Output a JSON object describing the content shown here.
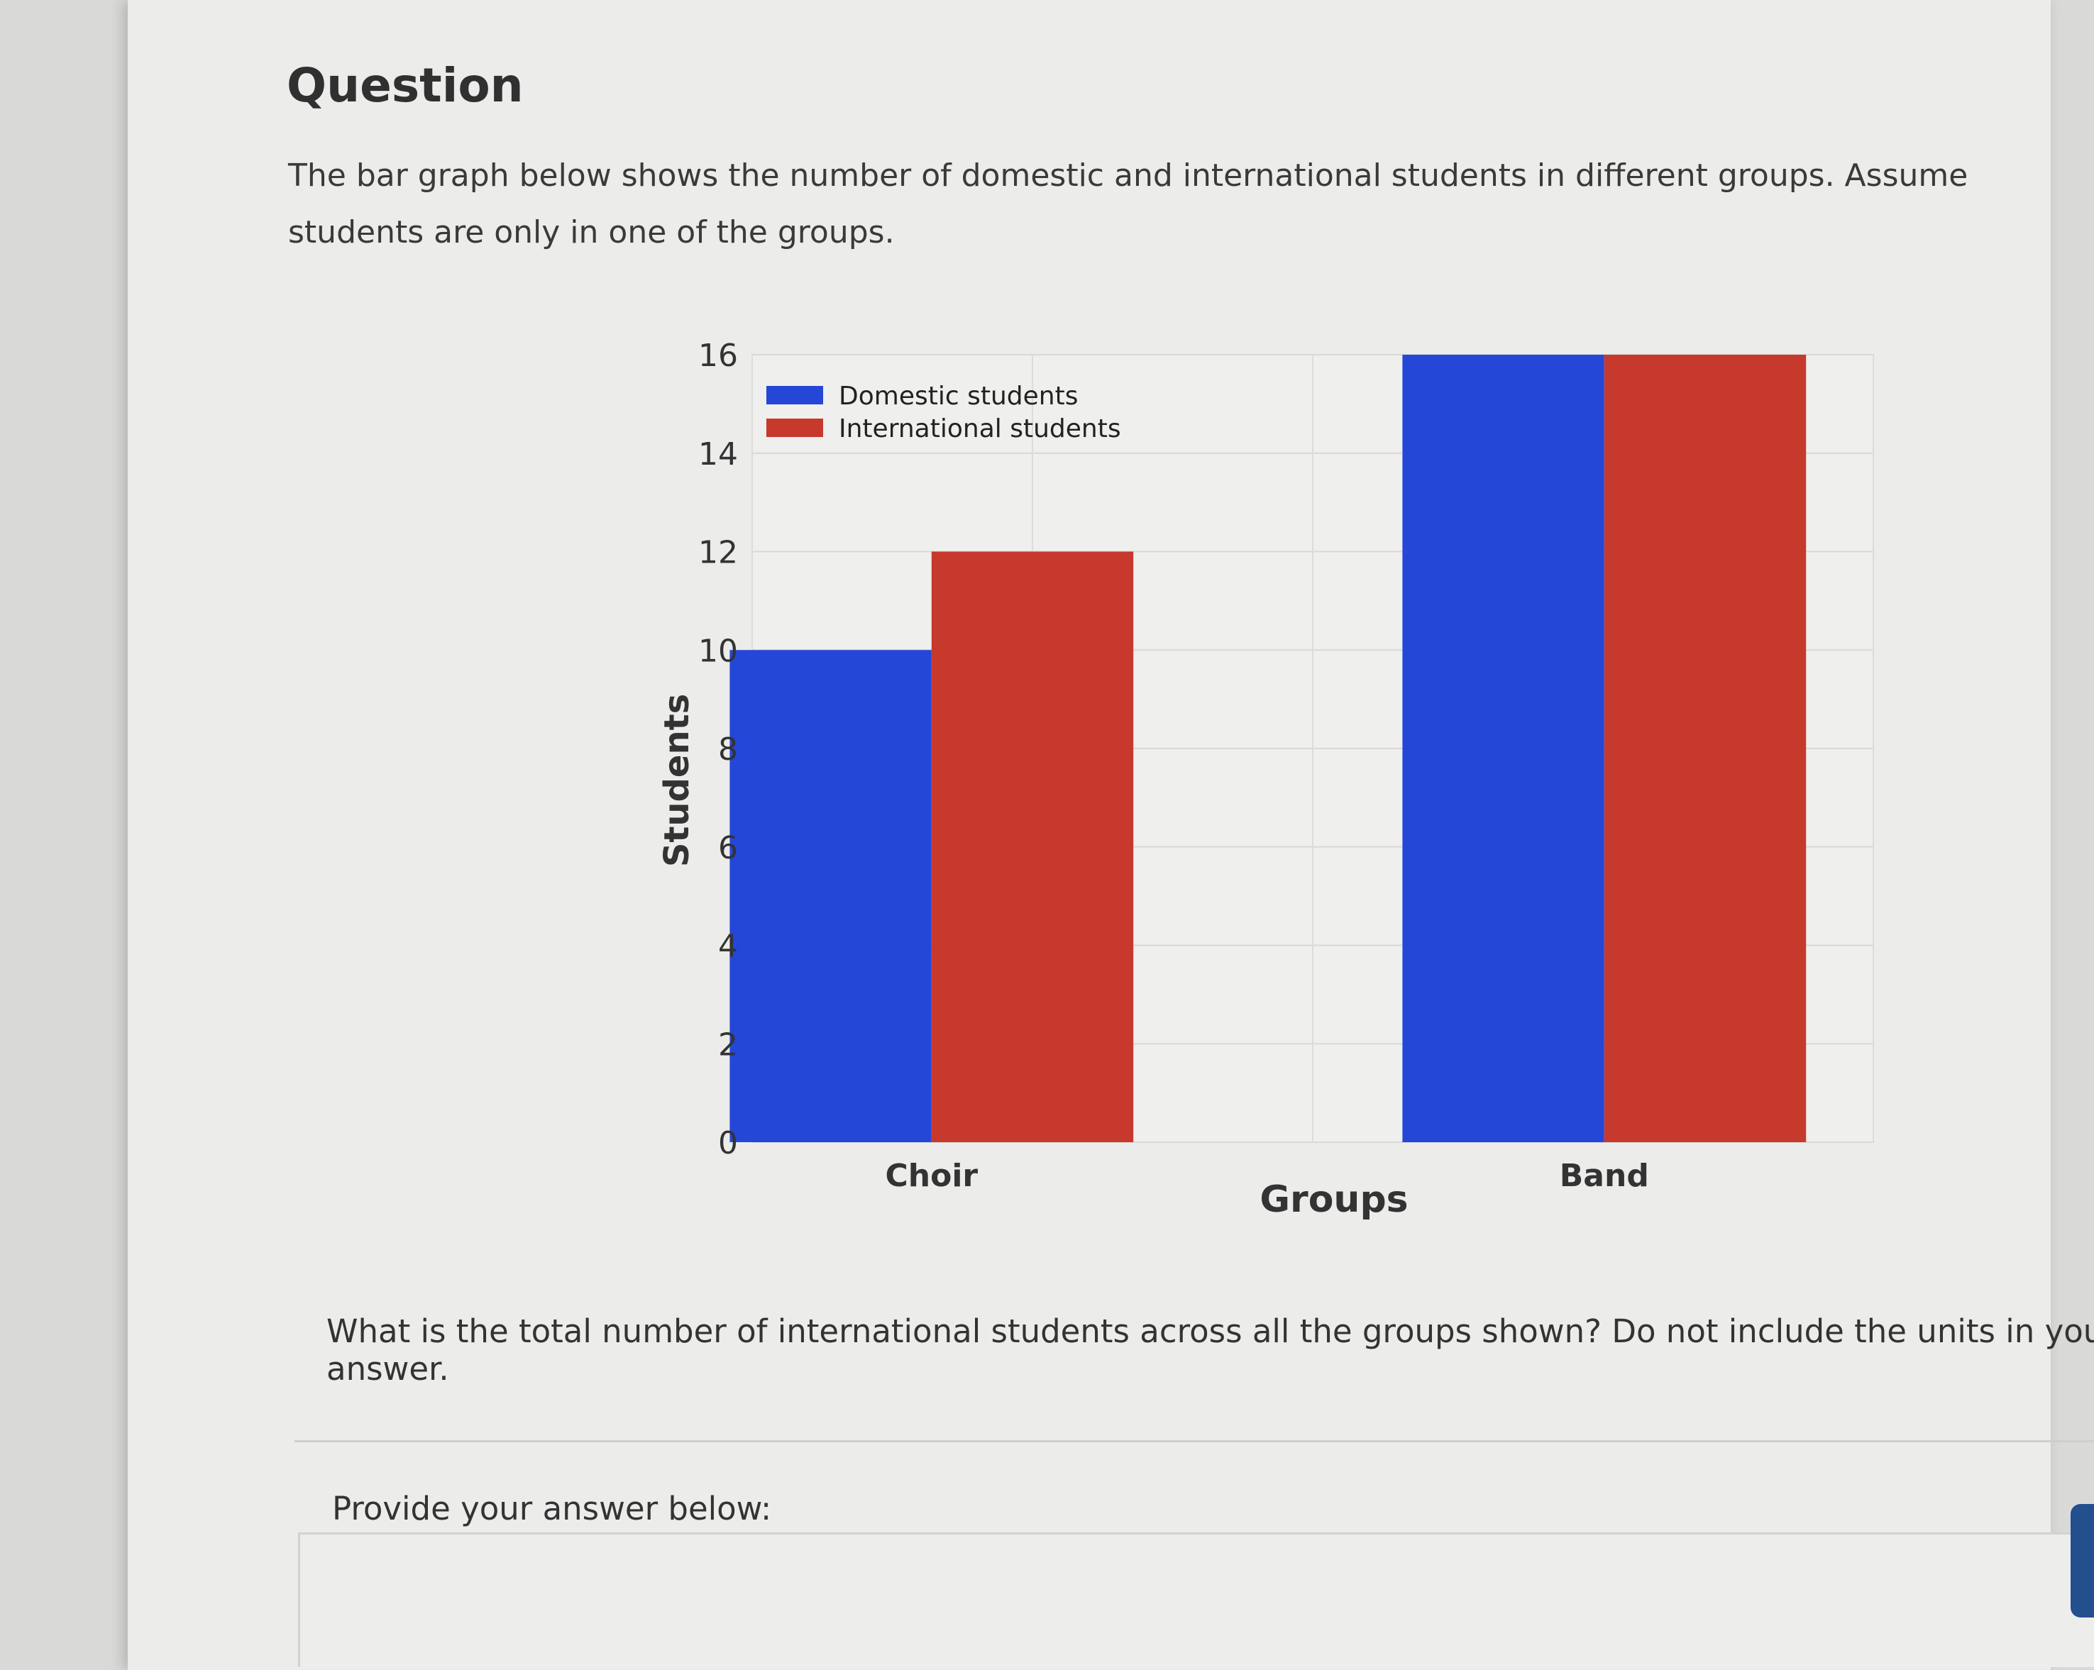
{
  "page": {
    "heading": "Question",
    "prompt": "The bar graph below shows the number of domestic and international students in different groups. Assume students are only in one of the groups.",
    "question": "What is the total number of international students across all the groups shown? Do not include the units in your answer.",
    "answer_label": "Provide your answer below:",
    "answer_value": ""
  },
  "chart_data": {
    "type": "bar",
    "categories": [
      "Choir",
      "Band"
    ],
    "series": [
      {
        "name": "Domestic students",
        "values": [
          10,
          16
        ],
        "color": "#2447d8"
      },
      {
        "name": "International students",
        "values": [
          12,
          16
        ],
        "color": "#c7392c"
      }
    ],
    "xlabel": "Groups",
    "ylabel": "Students",
    "ylim": [
      0,
      16
    ],
    "yticks": [
      0,
      2,
      4,
      6,
      8,
      10,
      12,
      14,
      16
    ],
    "grid": true,
    "legend": "top-left"
  }
}
